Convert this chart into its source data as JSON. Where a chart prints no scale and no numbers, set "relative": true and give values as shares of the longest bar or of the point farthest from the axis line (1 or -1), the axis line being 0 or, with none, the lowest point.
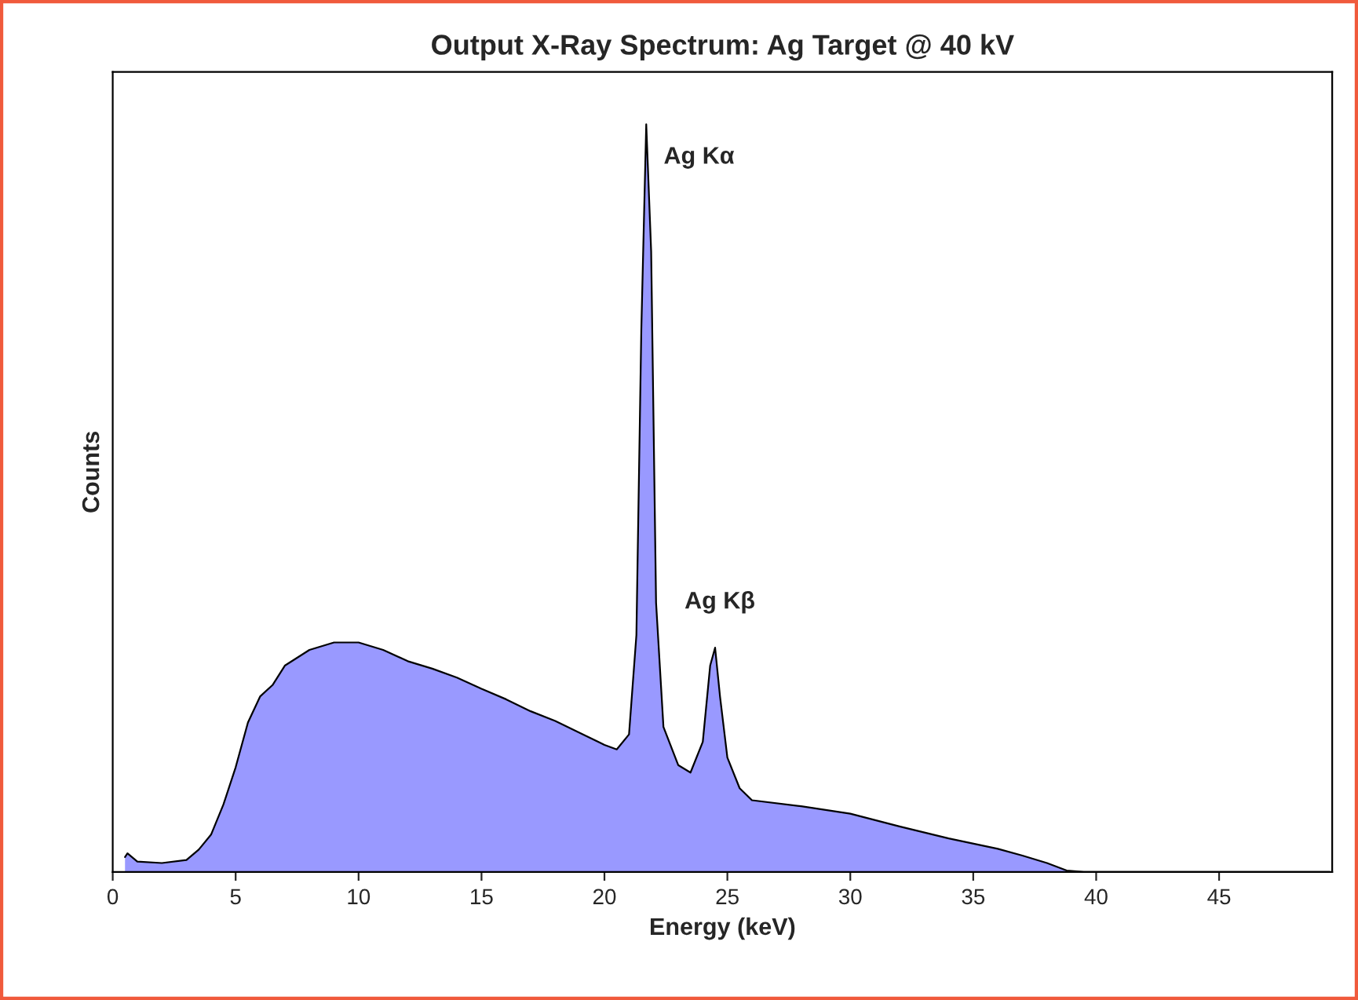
{
  "chart_data": {
    "type": "area",
    "title": "Output X-Ray Spectrum: Ag Target @ 40 kV",
    "xlabel": "Energy (keV)",
    "ylabel": "Counts",
    "relative": true,
    "tick_labels": "x",
    "grid": false,
    "xlim": [
      0,
      49.6
    ],
    "xticks": [
      0,
      5,
      10,
      15,
      20,
      25,
      30,
      35,
      40,
      45
    ],
    "series": [
      {
        "color": "#9999ff",
        "x": [
          0.5,
          0.6,
          1,
          2,
          3,
          3.5,
          4,
          4.5,
          5,
          5.5,
          6,
          6.5,
          7,
          8,
          9,
          10,
          11,
          12,
          13,
          14,
          15,
          16,
          17,
          18,
          19,
          20,
          20.5,
          21,
          21.3,
          21.5,
          21.7,
          21.9,
          22.1,
          22.4,
          23,
          23.5,
          24,
          24.3,
          24.5,
          24.7,
          25,
          25.5,
          26,
          28,
          30,
          32,
          34,
          36,
          37,
          38,
          38.8,
          39.5,
          49.5
        ],
        "values": [
          0.02,
          0.025,
          0.014,
          0.012,
          0.016,
          0.03,
          0.05,
          0.09,
          0.14,
          0.2,
          0.235,
          0.25,
          0.276,
          0.297,
          0.307,
          0.307,
          0.297,
          0.282,
          0.272,
          0.26,
          0.245,
          0.231,
          0.215,
          0.202,
          0.186,
          0.17,
          0.164,
          0.184,
          0.317,
          0.726,
          1.0,
          0.83,
          0.36,
          0.194,
          0.143,
          0.133,
          0.174,
          0.276,
          0.3,
          0.235,
          0.153,
          0.112,
          0.096,
          0.088,
          0.078,
          0.061,
          0.045,
          0.031,
          0.022,
          0.012,
          0.002,
          0,
          0
        ]
      }
    ],
    "annotations": [
      {
        "text": "Ag Kα",
        "x": 21.7,
        "y": 1.0
      },
      {
        "text": "Ag Kβ",
        "x": 24.5,
        "y": 0.3
      }
    ]
  }
}
